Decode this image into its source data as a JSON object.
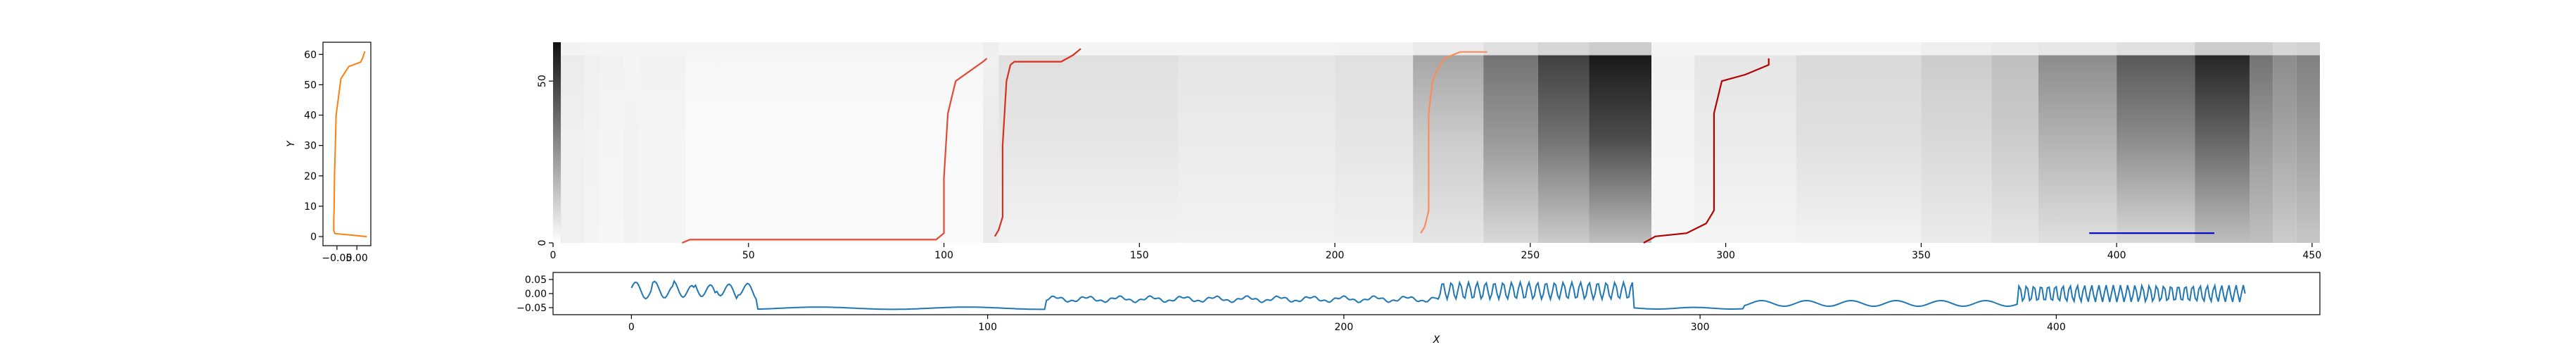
{
  "chart_data": [
    {
      "type": "line",
      "panel": "left-profile",
      "ylabel": "Y",
      "xlabel": "",
      "xlim": [
        -0.085,
        0.035
      ],
      "ylim": [
        -3,
        64
      ],
      "xticks": [
        -0.05,
        0.0
      ],
      "xtick_labels": [
        "−0.05",
        "0.00"
      ],
      "yticks": [
        0,
        10,
        20,
        30,
        40,
        50,
        60
      ],
      "ytick_labels": [
        "0",
        "10",
        "20",
        "30",
        "40",
        "50",
        "60"
      ],
      "color": "#ff7f0e",
      "series": [
        {
          "x": [
            0.025,
            -0.055,
            -0.058,
            -0.058,
            -0.057,
            -0.056,
            -0.054,
            -0.052,
            -0.04,
            -0.02,
            0.0,
            0.01,
            0.015,
            0.02
          ],
          "y": [
            0,
            1,
            2,
            5,
            10,
            20,
            30,
            40,
            52,
            56,
            57,
            57.5,
            59,
            61
          ]
        }
      ]
    },
    {
      "type": "heatmap",
      "panel": "main-heatmap",
      "xlim": [
        0,
        452
      ],
      "ylim": [
        0,
        62
      ],
      "xticks": [
        0,
        50,
        100,
        150,
        200,
        250,
        300,
        350,
        400,
        450
      ],
      "xtick_labels": [
        "0",
        "50",
        "100",
        "150",
        "200",
        "250",
        "300",
        "350",
        "400",
        "450"
      ],
      "yticks": [
        0,
        50
      ],
      "ytick_labels": [
        "0",
        "50"
      ],
      "colormap": "greys",
      "overlays": [
        {
          "color": "#e34a33",
          "x": [
            33,
            35,
            60,
            80,
            98,
            100,
            100,
            101,
            103,
            110,
            111
          ],
          "y": [
            0,
            1,
            1,
            1,
            1,
            3,
            20,
            40,
            50,
            56,
            57
          ]
        },
        {
          "color": "#d7301f",
          "x": [
            113,
            114,
            115,
            115,
            116,
            117,
            118,
            130,
            133,
            135
          ],
          "y": [
            2,
            4,
            8,
            30,
            50,
            55,
            56,
            56,
            58,
            60
          ]
        },
        {
          "color": "#fc8d59",
          "x": [
            222,
            223,
            224,
            224,
            224,
            225,
            226,
            227,
            228,
            232,
            239
          ],
          "y": [
            3,
            5,
            10,
            20,
            40,
            50,
            53,
            55,
            57,
            59,
            59
          ]
        },
        {
          "color": "#b30000",
          "x": [
            279,
            282,
            290,
            295,
            296,
            297,
            297,
            299,
            305,
            311,
            311
          ],
          "y": [
            0,
            2,
            3,
            6,
            8,
            10,
            40,
            50,
            52,
            55,
            57
          ]
        },
        {
          "color": "#0000cc",
          "x": [
            393,
            425
          ],
          "y": [
            3,
            3
          ]
        }
      ],
      "bands": [
        {
          "x0": 0,
          "x1": 2,
          "grad": [
            0.95,
            0.95,
            0.95
          ]
        },
        {
          "x0": 0,
          "x1": 2,
          "solid": true
        },
        {
          "x0": 2,
          "x1": 8,
          "grad": [
            0.06,
            0.06,
            0.08
          ]
        },
        {
          "x0": 8,
          "x1": 12,
          "grad": [
            0.04,
            0.05,
            0.06
          ]
        },
        {
          "x0": 12,
          "x1": 18,
          "grad": [
            0.03,
            0.04,
            0.05
          ]
        },
        {
          "x0": 18,
          "x1": 22,
          "grad": [
            0.05,
            0.05,
            0.04
          ]
        },
        {
          "x0": 22,
          "x1": 34,
          "grad": [
            0.04,
            0.04,
            0.05
          ]
        },
        {
          "x0": 34,
          "x1": 110,
          "grad": [
            0.02,
            0.02,
            0.03
          ]
        },
        {
          "x0": 110,
          "x1": 114,
          "grad": [
            0.08,
            0.08,
            0.06
          ]
        },
        {
          "x0": 114,
          "x1": 160,
          "grad": [
            0.05,
            0.1,
            0.12
          ]
        },
        {
          "x0": 160,
          "x1": 200,
          "grad": [
            0.05,
            0.08,
            0.1
          ]
        },
        {
          "x0": 200,
          "x1": 220,
          "grad": [
            0.06,
            0.1,
            0.12
          ]
        },
        {
          "x0": 220,
          "x1": 238,
          "grad": [
            0.1,
            0.2,
            0.35
          ]
        },
        {
          "x0": 238,
          "x1": 252,
          "grad": [
            0.15,
            0.4,
            0.55
          ]
        },
        {
          "x0": 252,
          "x1": 265,
          "grad": [
            0.2,
            0.55,
            0.75
          ]
        },
        {
          "x0": 265,
          "x1": 281,
          "grad": [
            0.25,
            0.7,
            0.9
          ]
        },
        {
          "x0": 281,
          "x1": 292,
          "grad": [
            0.03,
            0.04,
            0.05
          ]
        },
        {
          "x0": 292,
          "x1": 318,
          "grad": [
            0.04,
            0.08,
            0.1
          ]
        },
        {
          "x0": 318,
          "x1": 350,
          "grad": [
            0.05,
            0.12,
            0.15
          ]
        },
        {
          "x0": 350,
          "x1": 368,
          "grad": [
            0.08,
            0.15,
            0.2
          ]
        },
        {
          "x0": 368,
          "x1": 380,
          "grad": [
            0.1,
            0.2,
            0.25
          ]
        },
        {
          "x0": 380,
          "x1": 400,
          "grad": [
            0.12,
            0.3,
            0.45
          ]
        },
        {
          "x0": 400,
          "x1": 420,
          "grad": [
            0.15,
            0.45,
            0.65
          ]
        },
        {
          "x0": 420,
          "x1": 434,
          "grad": [
            0.25,
            0.6,
            0.85
          ]
        },
        {
          "x0": 434,
          "x1": 440,
          "grad": [
            0.25,
            0.4,
            0.55
          ]
        },
        {
          "x0": 440,
          "x1": 446,
          "grad": [
            0.2,
            0.35,
            0.45
          ]
        },
        {
          "x0": 446,
          "x1": 452,
          "grad": [
            0.22,
            0.38,
            0.5
          ]
        }
      ]
    },
    {
      "type": "line",
      "panel": "bottom-signal",
      "xlabel": "X",
      "ylabel": "",
      "xlim": [
        -22,
        474
      ],
      "ylim": [
        -0.075,
        0.075
      ],
      "xticks": [
        0,
        100,
        200,
        300,
        400
      ],
      "xtick_labels": [
        "0",
        "100",
        "200",
        "300",
        "400"
      ],
      "yticks": [
        0.05,
        0.0,
        -0.05
      ],
      "ytick_labels": [
        "0.05",
        "0.00",
        "−0.05"
      ],
      "color": "#1f77b4"
    }
  ]
}
